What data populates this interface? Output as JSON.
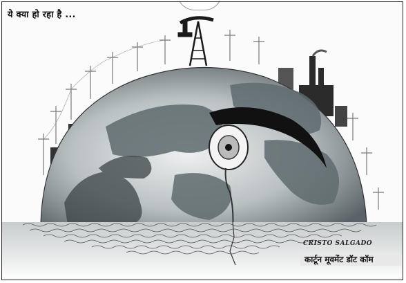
{
  "cartoon": {
    "headline": "ये क्या हो रहा है ...",
    "signature": "CRISTO SALGADO",
    "credit": "कार्टून मूवमेंट डॉट कॉम",
    "colors": {
      "frame": "#222222",
      "ink": "#1a1a1a",
      "globe_light": "#d8dcdc",
      "globe_dark": "#4e5a5e",
      "water": "#9aa3a6"
    },
    "depicted": [
      "earth-globe-half",
      "crying-eye",
      "oil-derrick",
      "factory-chimneys",
      "power-line-poles",
      "wavy-water"
    ]
  }
}
